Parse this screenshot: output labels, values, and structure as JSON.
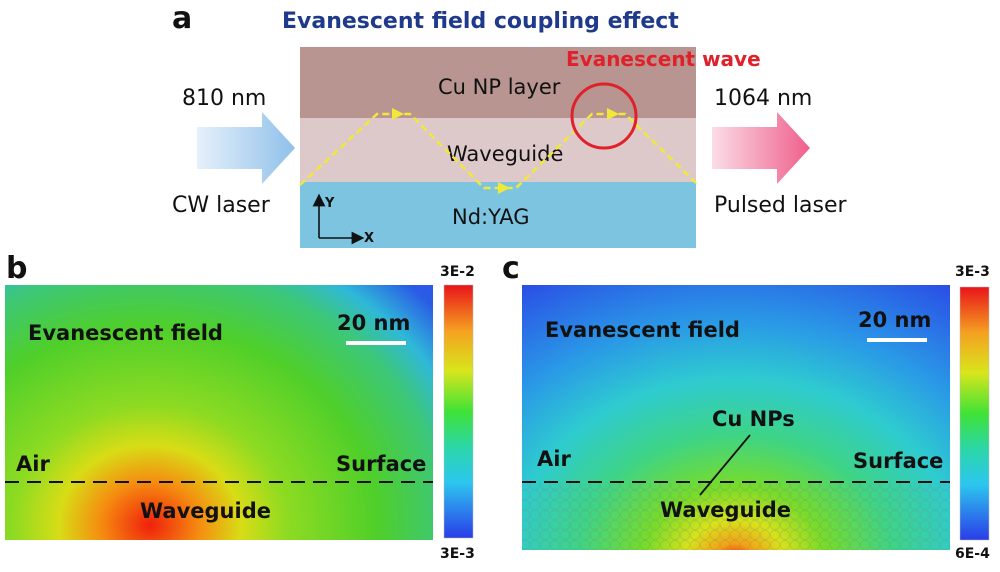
{
  "panel_a": {
    "letter": "a",
    "title": "Evanescent field coupling effect",
    "evanescent_wave_label": "Evanescent wave",
    "input_wavelength": "810 nm",
    "input_type": "CW laser",
    "output_wavelength": "1064 nm",
    "output_type": "Pulsed laser",
    "layers": {
      "top": "Cu NP layer",
      "middle": "Waveguide",
      "bottom": "Nd:YAG"
    },
    "axes": {
      "y": "Y",
      "x": "X"
    },
    "colors": {
      "cu_layer": "#b89591",
      "waveguide_layer": "#ddc9c9",
      "nd_yag_layer": "#7cc4e0",
      "beam_path": "#f2e839",
      "evanescent_circle": "#e0202a",
      "title": "#1f3a8a"
    }
  },
  "panel_b": {
    "letter": "b",
    "field_label": "Evanescent field",
    "scale_bar": "20 nm",
    "air_label": "Air",
    "surface_label": "Surface",
    "waveguide_label": "Waveguide",
    "colorbar_max": "3E-2",
    "colorbar_min": "3E-3"
  },
  "panel_c": {
    "letter": "c",
    "field_label": "Evanescent field",
    "scale_bar": "20 nm",
    "air_label": "Air",
    "surface_label": "Surface",
    "waveguide_label": "Waveguide",
    "particles_label": "Cu NPs",
    "colorbar_max": "3E-3",
    "colorbar_min": "6E-4"
  }
}
